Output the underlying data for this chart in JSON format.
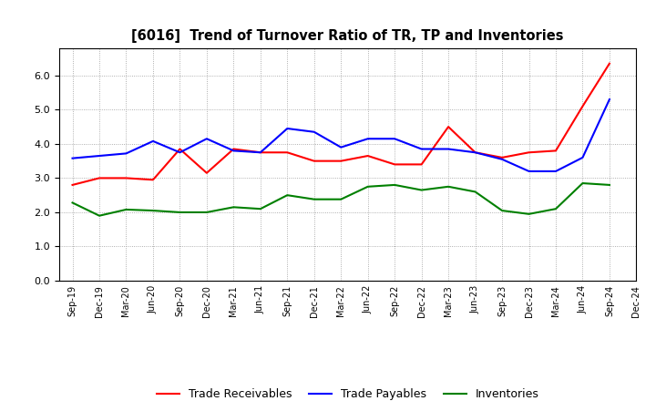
{
  "title": "[6016]  Trend of Turnover Ratio of TR, TP and Inventories",
  "x_labels": [
    "Sep-19",
    "Dec-19",
    "Mar-20",
    "Jun-20",
    "Sep-20",
    "Dec-20",
    "Mar-21",
    "Jun-21",
    "Sep-21",
    "Dec-21",
    "Mar-22",
    "Jun-22",
    "Sep-22",
    "Dec-22",
    "Mar-23",
    "Jun-23",
    "Sep-23",
    "Dec-23",
    "Mar-24",
    "Jun-24",
    "Sep-24",
    "Dec-24"
  ],
  "trade_receivables": [
    2.8,
    3.0,
    3.0,
    2.95,
    3.85,
    3.15,
    3.85,
    3.75,
    3.75,
    3.5,
    3.5,
    3.65,
    3.4,
    3.4,
    4.5,
    3.75,
    3.6,
    3.75,
    3.8,
    5.1,
    6.35,
    null
  ],
  "trade_payables": [
    3.58,
    3.65,
    3.72,
    4.08,
    3.75,
    4.15,
    3.8,
    3.75,
    4.45,
    4.35,
    3.9,
    4.15,
    4.15,
    3.85,
    3.85,
    3.75,
    3.55,
    3.2,
    3.2,
    3.6,
    5.3,
    null
  ],
  "inventories": [
    2.28,
    1.9,
    2.08,
    2.05,
    2.0,
    2.0,
    2.15,
    2.1,
    2.5,
    2.38,
    2.38,
    2.75,
    2.8,
    2.65,
    2.75,
    2.6,
    2.05,
    1.95,
    2.1,
    2.85,
    2.8,
    null
  ],
  "ylim": [
    0.0,
    6.8
  ],
  "yticks": [
    0.0,
    1.0,
    2.0,
    3.0,
    4.0,
    5.0,
    6.0
  ],
  "line_colors": {
    "trade_receivables": "#FF0000",
    "trade_payables": "#0000FF",
    "inventories": "#008000"
  },
  "legend_labels": [
    "Trade Receivables",
    "Trade Payables",
    "Inventories"
  ],
  "background_color": "#FFFFFF",
  "grid_color": "#999999"
}
